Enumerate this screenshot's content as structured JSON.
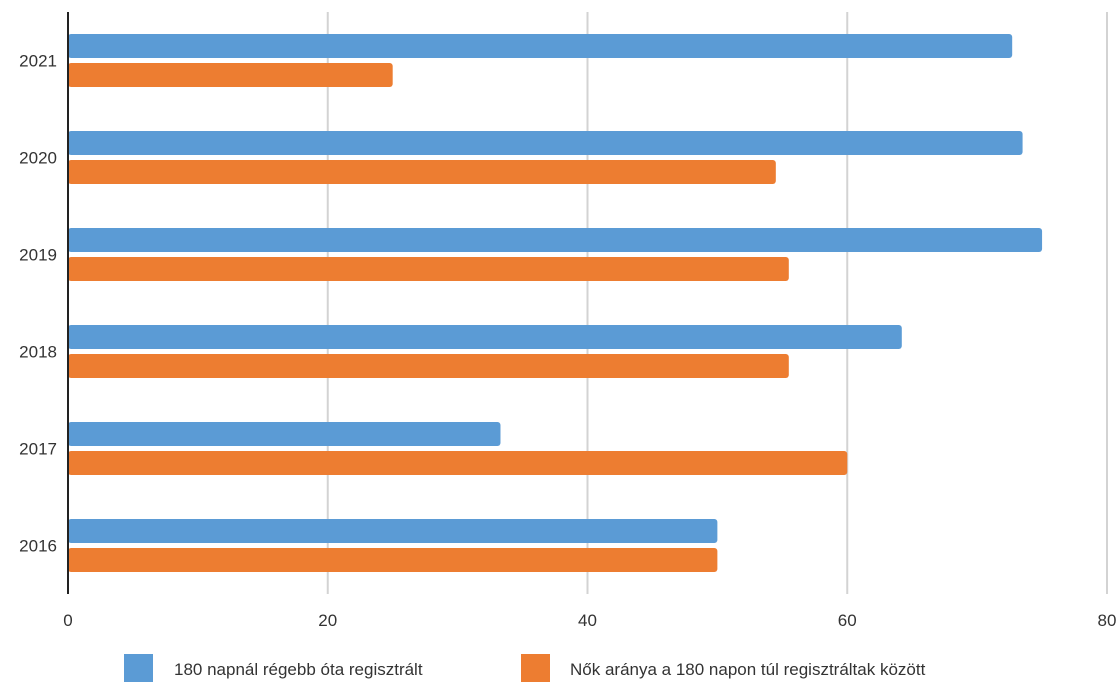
{
  "chart_data": {
    "type": "bar",
    "orientation": "horizontal",
    "categories": [
      "2016",
      "2017",
      "2018",
      "2019",
      "2020",
      "2021"
    ],
    "series": [
      {
        "name": "180 napnál régebb óta regisztrált",
        "color": "#5b9bd5",
        "values": [
          50,
          33.3,
          64.2,
          75,
          73.5,
          72.7
        ]
      },
      {
        "name": "Nők aránya a 180 napon túl regisztráltak között",
        "color": "#ed7d31",
        "values": [
          50,
          60,
          55.5,
          55.5,
          54.5,
          25
        ]
      }
    ],
    "x_ticks": [
      "0",
      "20",
      "40",
      "60",
      "80"
    ],
    "xlim": [
      0,
      80
    ],
    "grid": "vertical",
    "legend": "bottom"
  }
}
